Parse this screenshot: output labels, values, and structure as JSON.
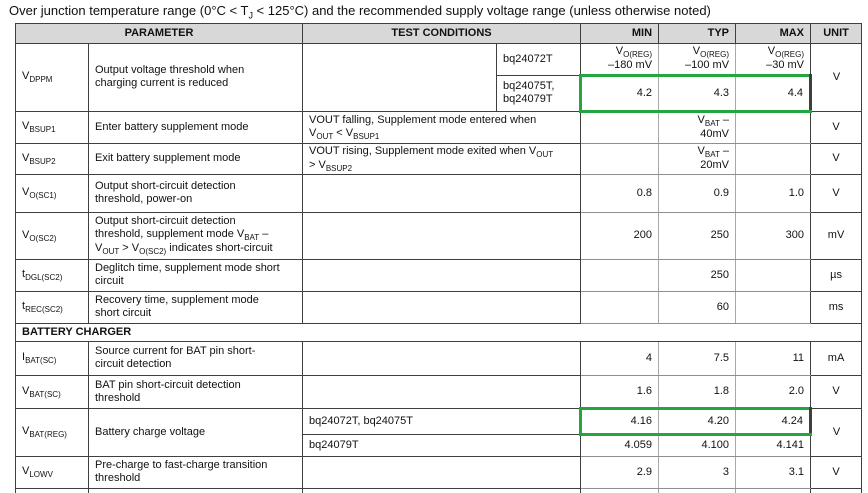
{
  "colors": {
    "highlight_green": "#23a63e",
    "header_bg": "#d8d8d8"
  },
  "caption": {
    "segments": [
      {
        "t": "Over junction temperature range (0°C < T"
      },
      {
        "s": "J"
      },
      {
        "t": " < 125°C) and the recommended supply voltage range (unless otherwise noted)"
      }
    ]
  },
  "table": {
    "headers": {
      "parameter": "PARAMETER",
      "test_conditions": "TEST CONDITIONS",
      "min": "MIN",
      "typ": "TYP",
      "max": "MAX",
      "unit": "UNIT"
    },
    "section_battery_charger": "BATTERY CHARGER",
    "rows": {
      "vdppm": {
        "symbol": [
          {
            "t": "V"
          },
          {
            "s": "DPPM"
          }
        ],
        "description": [
          {
            "t": "Output voltage threshold when"
          },
          {
            "b": 1
          },
          {
            "t": "charging current is reduced"
          }
        ],
        "unit": "V",
        "variants": [
          {
            "device": "bq24072T",
            "min": [
              {
                "t": "V"
              },
              {
                "s": "O(REG)"
              },
              {
                "b": 1
              },
              {
                "t": "–180 mV"
              }
            ],
            "typ": [
              {
                "t": "V"
              },
              {
                "s": "O(REG)"
              },
              {
                "b": 1
              },
              {
                "t": "–100 mV"
              }
            ],
            "max": [
              {
                "t": "V"
              },
              {
                "s": "O(REG)"
              },
              {
                "b": 1
              },
              {
                "t": "–30 mV"
              }
            ],
            "highlighted": false
          },
          {
            "device": "bq24075T, bq24079T",
            "min": "4.2",
            "typ": "4.3",
            "max": "4.4",
            "highlighted": true
          }
        ]
      },
      "vbsup1": {
        "symbol": [
          {
            "t": "V"
          },
          {
            "s": "BSUP1"
          }
        ],
        "description": [
          {
            "t": "Enter battery supplement mode"
          }
        ],
        "condition": [
          {
            "t": "VOUT falling, Supplement mode entered when"
          },
          {
            "b": 1
          },
          {
            "t": "V"
          },
          {
            "s": "OUT"
          },
          {
            "t": " < V"
          },
          {
            "s": "BSUP1"
          }
        ],
        "typ": [
          {
            "t": "V"
          },
          {
            "s": "BAT"
          },
          {
            "t": " –"
          },
          {
            "b": 1
          },
          {
            "t": "40mV"
          }
        ],
        "unit": "V"
      },
      "vbsup2": {
        "symbol": [
          {
            "t": "V"
          },
          {
            "s": "BSUP2"
          }
        ],
        "description": [
          {
            "t": "Exit battery supplement mode"
          }
        ],
        "condition": [
          {
            "t": "VOUT rising, Supplement mode exited when V"
          },
          {
            "s": "OUT"
          },
          {
            "b": 1
          },
          {
            "t": "> V"
          },
          {
            "s": "BSUP2"
          }
        ],
        "typ": [
          {
            "t": "V"
          },
          {
            "s": "BAT"
          },
          {
            "t": " –"
          },
          {
            "b": 1
          },
          {
            "t": "20mV"
          }
        ],
        "unit": "V"
      },
      "vosc1": {
        "symbol": [
          {
            "t": "V"
          },
          {
            "s": "O(SC1)"
          }
        ],
        "description": [
          {
            "t": "Output short-circuit detection"
          },
          {
            "b": 1
          },
          {
            "t": "threshold, power-on"
          }
        ],
        "min": "0.8",
        "typ": "0.9",
        "max": "1.0",
        "unit": "V"
      },
      "vosc2": {
        "symbol": [
          {
            "t": "V"
          },
          {
            "s": "O(SC2)"
          }
        ],
        "description": [
          {
            "t": "Output short-circuit detection"
          },
          {
            "b": 1
          },
          {
            "t": "threshold, supplement mode V"
          },
          {
            "s": "BAT"
          },
          {
            "t": " –"
          },
          {
            "b": 1
          },
          {
            "t": "V"
          },
          {
            "s": "OUT"
          },
          {
            "t": " > V"
          },
          {
            "s": "O(SC2)"
          },
          {
            "t": " indicates short-circuit"
          }
        ],
        "min": "200",
        "typ": "250",
        "max": "300",
        "unit": "mV"
      },
      "tdgl": {
        "symbol": [
          {
            "t": "t"
          },
          {
            "s": "DGL(SC2)"
          }
        ],
        "description": [
          {
            "t": "Deglitch time, supplement mode short"
          },
          {
            "b": 1
          },
          {
            "t": "circuit"
          }
        ],
        "typ": "250",
        "unit": "µs"
      },
      "trec": {
        "symbol": [
          {
            "t": "t"
          },
          {
            "s": "REC(SC2)"
          }
        ],
        "description": [
          {
            "t": "Recovery time, supplement mode"
          },
          {
            "b": 1
          },
          {
            "t": "short circuit"
          }
        ],
        "typ": "60",
        "unit": "ms"
      },
      "ibatsc": {
        "symbol": [
          {
            "t": "I"
          },
          {
            "s": "BAT(SC)"
          }
        ],
        "description": [
          {
            "t": "Source current for BAT pin short-"
          },
          {
            "b": 1
          },
          {
            "t": "circuit detection"
          }
        ],
        "min": "4",
        "typ": "7.5",
        "max": "11",
        "unit": "mA"
      },
      "vbatsc": {
        "symbol": [
          {
            "t": "V"
          },
          {
            "s": "BAT(SC)"
          }
        ],
        "description": [
          {
            "t": "BAT pin short-circuit detection"
          },
          {
            "b": 1
          },
          {
            "t": "threshold"
          }
        ],
        "min": "1.6",
        "typ": "1.8",
        "max": "2.0",
        "unit": "V"
      },
      "vbatreg": {
        "symbol": [
          {
            "t": "V"
          },
          {
            "s": "BAT(REG)"
          }
        ],
        "description": [
          {
            "t": "Battery charge voltage"
          }
        ],
        "unit": "V",
        "variants": [
          {
            "device": "bq24072T, bq24075T",
            "min": "4.16",
            "typ": "4.20",
            "max": "4.24",
            "highlighted": true
          },
          {
            "device": "bq24079T",
            "min": "4.059",
            "typ": "4.100",
            "max": "4.141",
            "highlighted": false
          }
        ]
      },
      "vlowv": {
        "symbol": [
          {
            "t": "V"
          },
          {
            "s": "LOWV"
          }
        ],
        "description": [
          {
            "t": "Pre-charge to fast-charge transition"
          },
          {
            "b": 1
          },
          {
            "t": "threshold"
          }
        ],
        "min": "2.9",
        "typ": "3",
        "max": "3.1",
        "unit": "V"
      }
    }
  }
}
